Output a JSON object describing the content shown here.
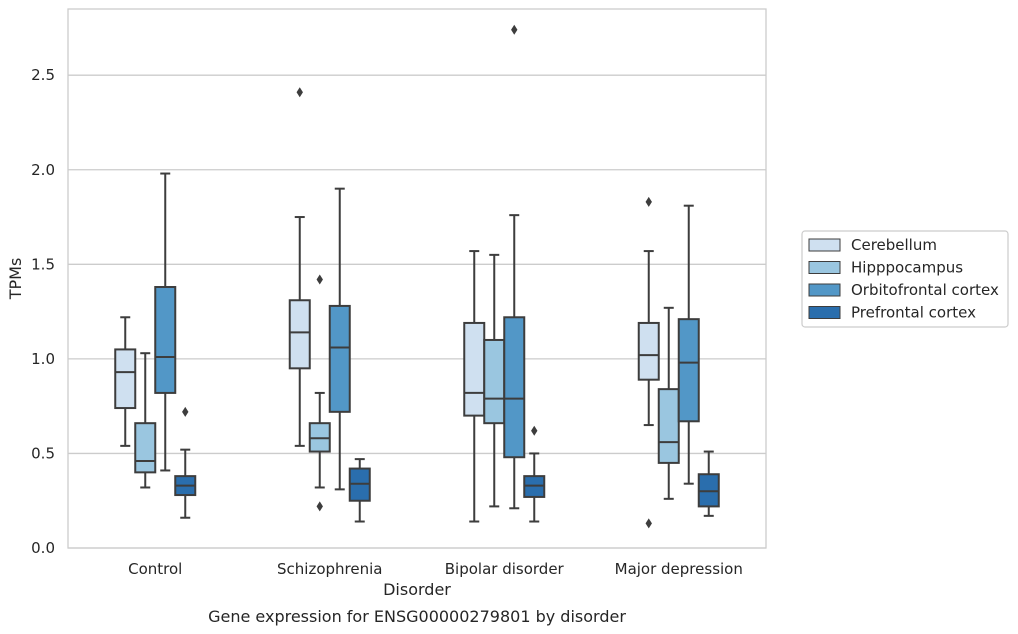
{
  "chart_data": {
    "type": "box",
    "xlabel": "Disorder",
    "ylabel": "TPMs",
    "caption": "Gene expression for ENSG00000279801 by disorder",
    "ylim": [
      0,
      2.85
    ],
    "yticks": [
      0.0,
      0.5,
      1.0,
      1.5,
      2.0,
      2.5
    ],
    "ytick_labels": [
      "0.0",
      "0.5",
      "1.0",
      "1.5",
      "2.0",
      "2.5"
    ],
    "grid": "horizontal",
    "legend_position": "right",
    "categories": [
      "Control",
      "Schizophrenia",
      "Bipolar disorder",
      "Major depression"
    ],
    "series": [
      {
        "name": "Cerebellum",
        "color": "#cfe0f0",
        "boxes": [
          {
            "whisker_low": 0.54,
            "q1": 0.74,
            "median": 0.93,
            "q3": 1.05,
            "whisker_high": 1.22,
            "outliers": []
          },
          {
            "whisker_low": 0.54,
            "q1": 0.95,
            "median": 1.14,
            "q3": 1.31,
            "whisker_high": 1.75,
            "outliers": [
              2.41
            ]
          },
          {
            "whisker_low": 0.14,
            "q1": 0.7,
            "median": 0.82,
            "q3": 1.19,
            "whisker_high": 1.57,
            "outliers": []
          },
          {
            "whisker_low": 0.65,
            "q1": 0.89,
            "median": 1.02,
            "q3": 1.19,
            "whisker_high": 1.57,
            "outliers": [
              1.83,
              0.13
            ]
          }
        ]
      },
      {
        "name": "Hipppocampus",
        "color": "#9ac6e0",
        "boxes": [
          {
            "whisker_low": 0.32,
            "q1": 0.4,
            "median": 0.46,
            "q3": 0.66,
            "whisker_high": 1.03,
            "outliers": []
          },
          {
            "whisker_low": 0.32,
            "q1": 0.51,
            "median": 0.58,
            "q3": 0.66,
            "whisker_high": 0.82,
            "outliers": [
              1.42,
              0.22
            ]
          },
          {
            "whisker_low": 0.22,
            "q1": 0.66,
            "median": 0.79,
            "q3": 1.1,
            "whisker_high": 1.55,
            "outliers": []
          },
          {
            "whisker_low": 0.26,
            "q1": 0.45,
            "median": 0.56,
            "q3": 0.84,
            "whisker_high": 1.27,
            "outliers": []
          }
        ]
      },
      {
        "name": "Orbitofrontal cortex",
        "color": "#5297c7",
        "boxes": [
          {
            "whisker_low": 0.41,
            "q1": 0.82,
            "median": 1.01,
            "q3": 1.38,
            "whisker_high": 1.98,
            "outliers": []
          },
          {
            "whisker_low": 0.31,
            "q1": 0.72,
            "median": 1.06,
            "q3": 1.28,
            "whisker_high": 1.9,
            "outliers": []
          },
          {
            "whisker_low": 0.21,
            "q1": 0.48,
            "median": 0.79,
            "q3": 1.22,
            "whisker_high": 1.76,
            "outliers": [
              2.74
            ]
          },
          {
            "whisker_low": 0.34,
            "q1": 0.67,
            "median": 0.98,
            "q3": 1.21,
            "whisker_high": 1.81,
            "outliers": []
          }
        ]
      },
      {
        "name": "Prefrontal cortex",
        "color": "#2a6ead",
        "boxes": [
          {
            "whisker_low": 0.16,
            "q1": 0.28,
            "median": 0.33,
            "q3": 0.38,
            "whisker_high": 0.52,
            "outliers": [
              0.72
            ]
          },
          {
            "whisker_low": 0.14,
            "q1": 0.25,
            "median": 0.34,
            "q3": 0.42,
            "whisker_high": 0.47,
            "outliers": []
          },
          {
            "whisker_low": 0.14,
            "q1": 0.27,
            "median": 0.33,
            "q3": 0.38,
            "whisker_high": 0.5,
            "outliers": [
              0.62
            ]
          },
          {
            "whisker_low": 0.17,
            "q1": 0.22,
            "median": 0.3,
            "q3": 0.39,
            "whisker_high": 0.51,
            "outliers": []
          }
        ]
      }
    ]
  }
}
